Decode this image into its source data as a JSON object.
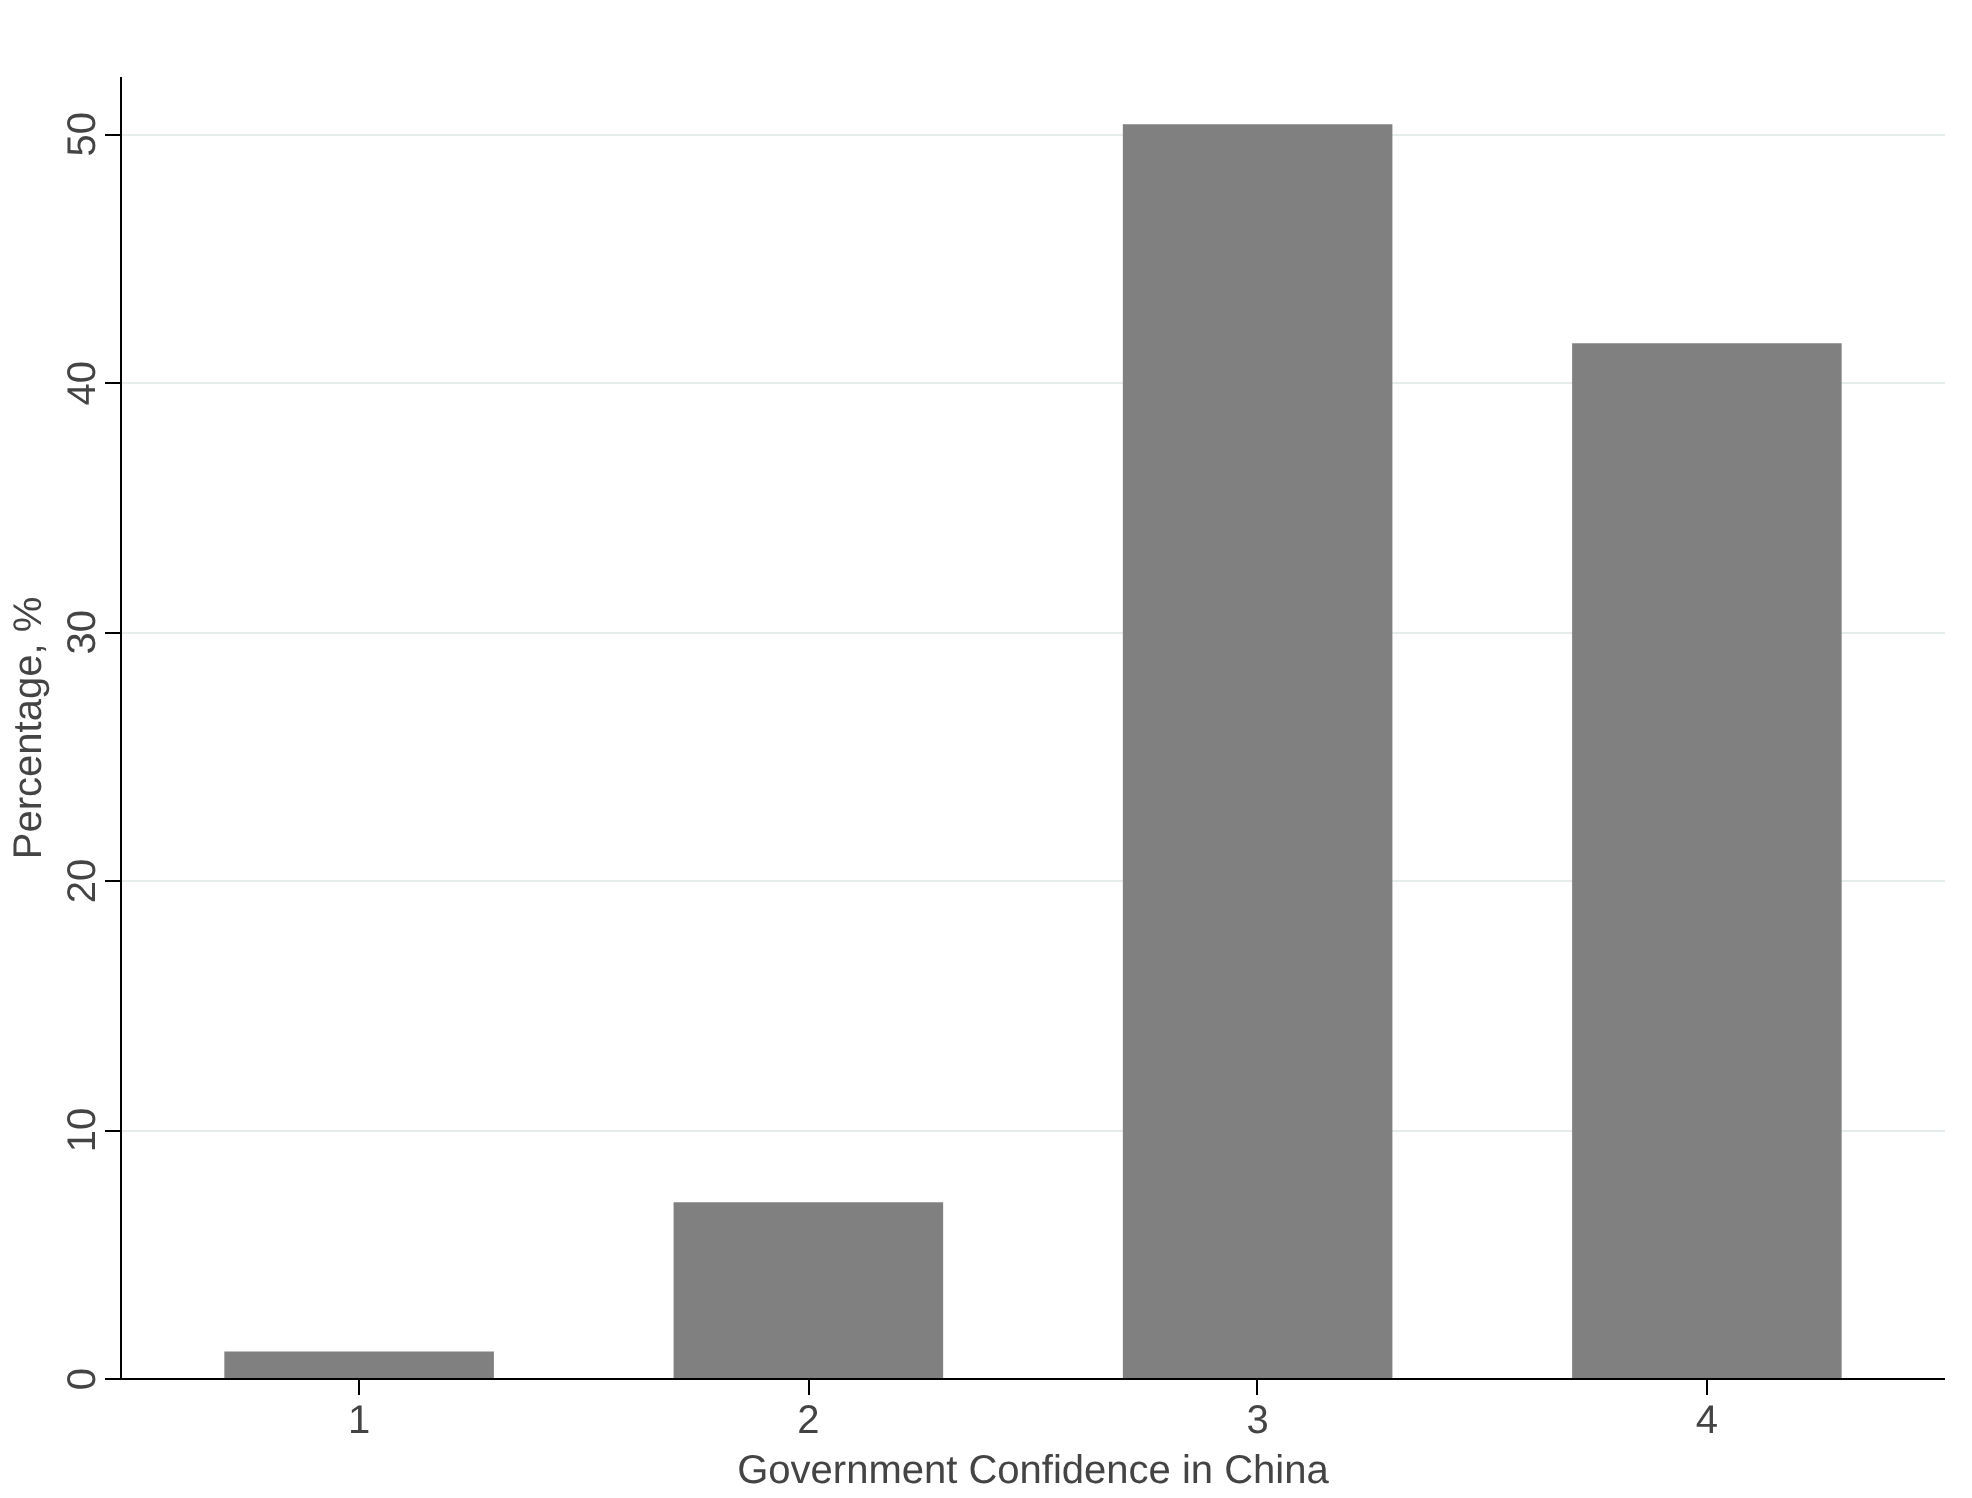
{
  "chart_data": {
    "type": "bar",
    "xlabel": "Government Confidence in China",
    "ylabel": "Percentage, %",
    "categories": [
      "1",
      "2",
      "3",
      "4"
    ],
    "values": [
      1.1,
      7.1,
      50.4,
      41.6
    ],
    "color": "#808080",
    "ylim": [
      0,
      52.3
    ],
    "yticks": [
      0,
      10,
      20,
      30,
      40,
      50
    ],
    "grid": "y"
  }
}
